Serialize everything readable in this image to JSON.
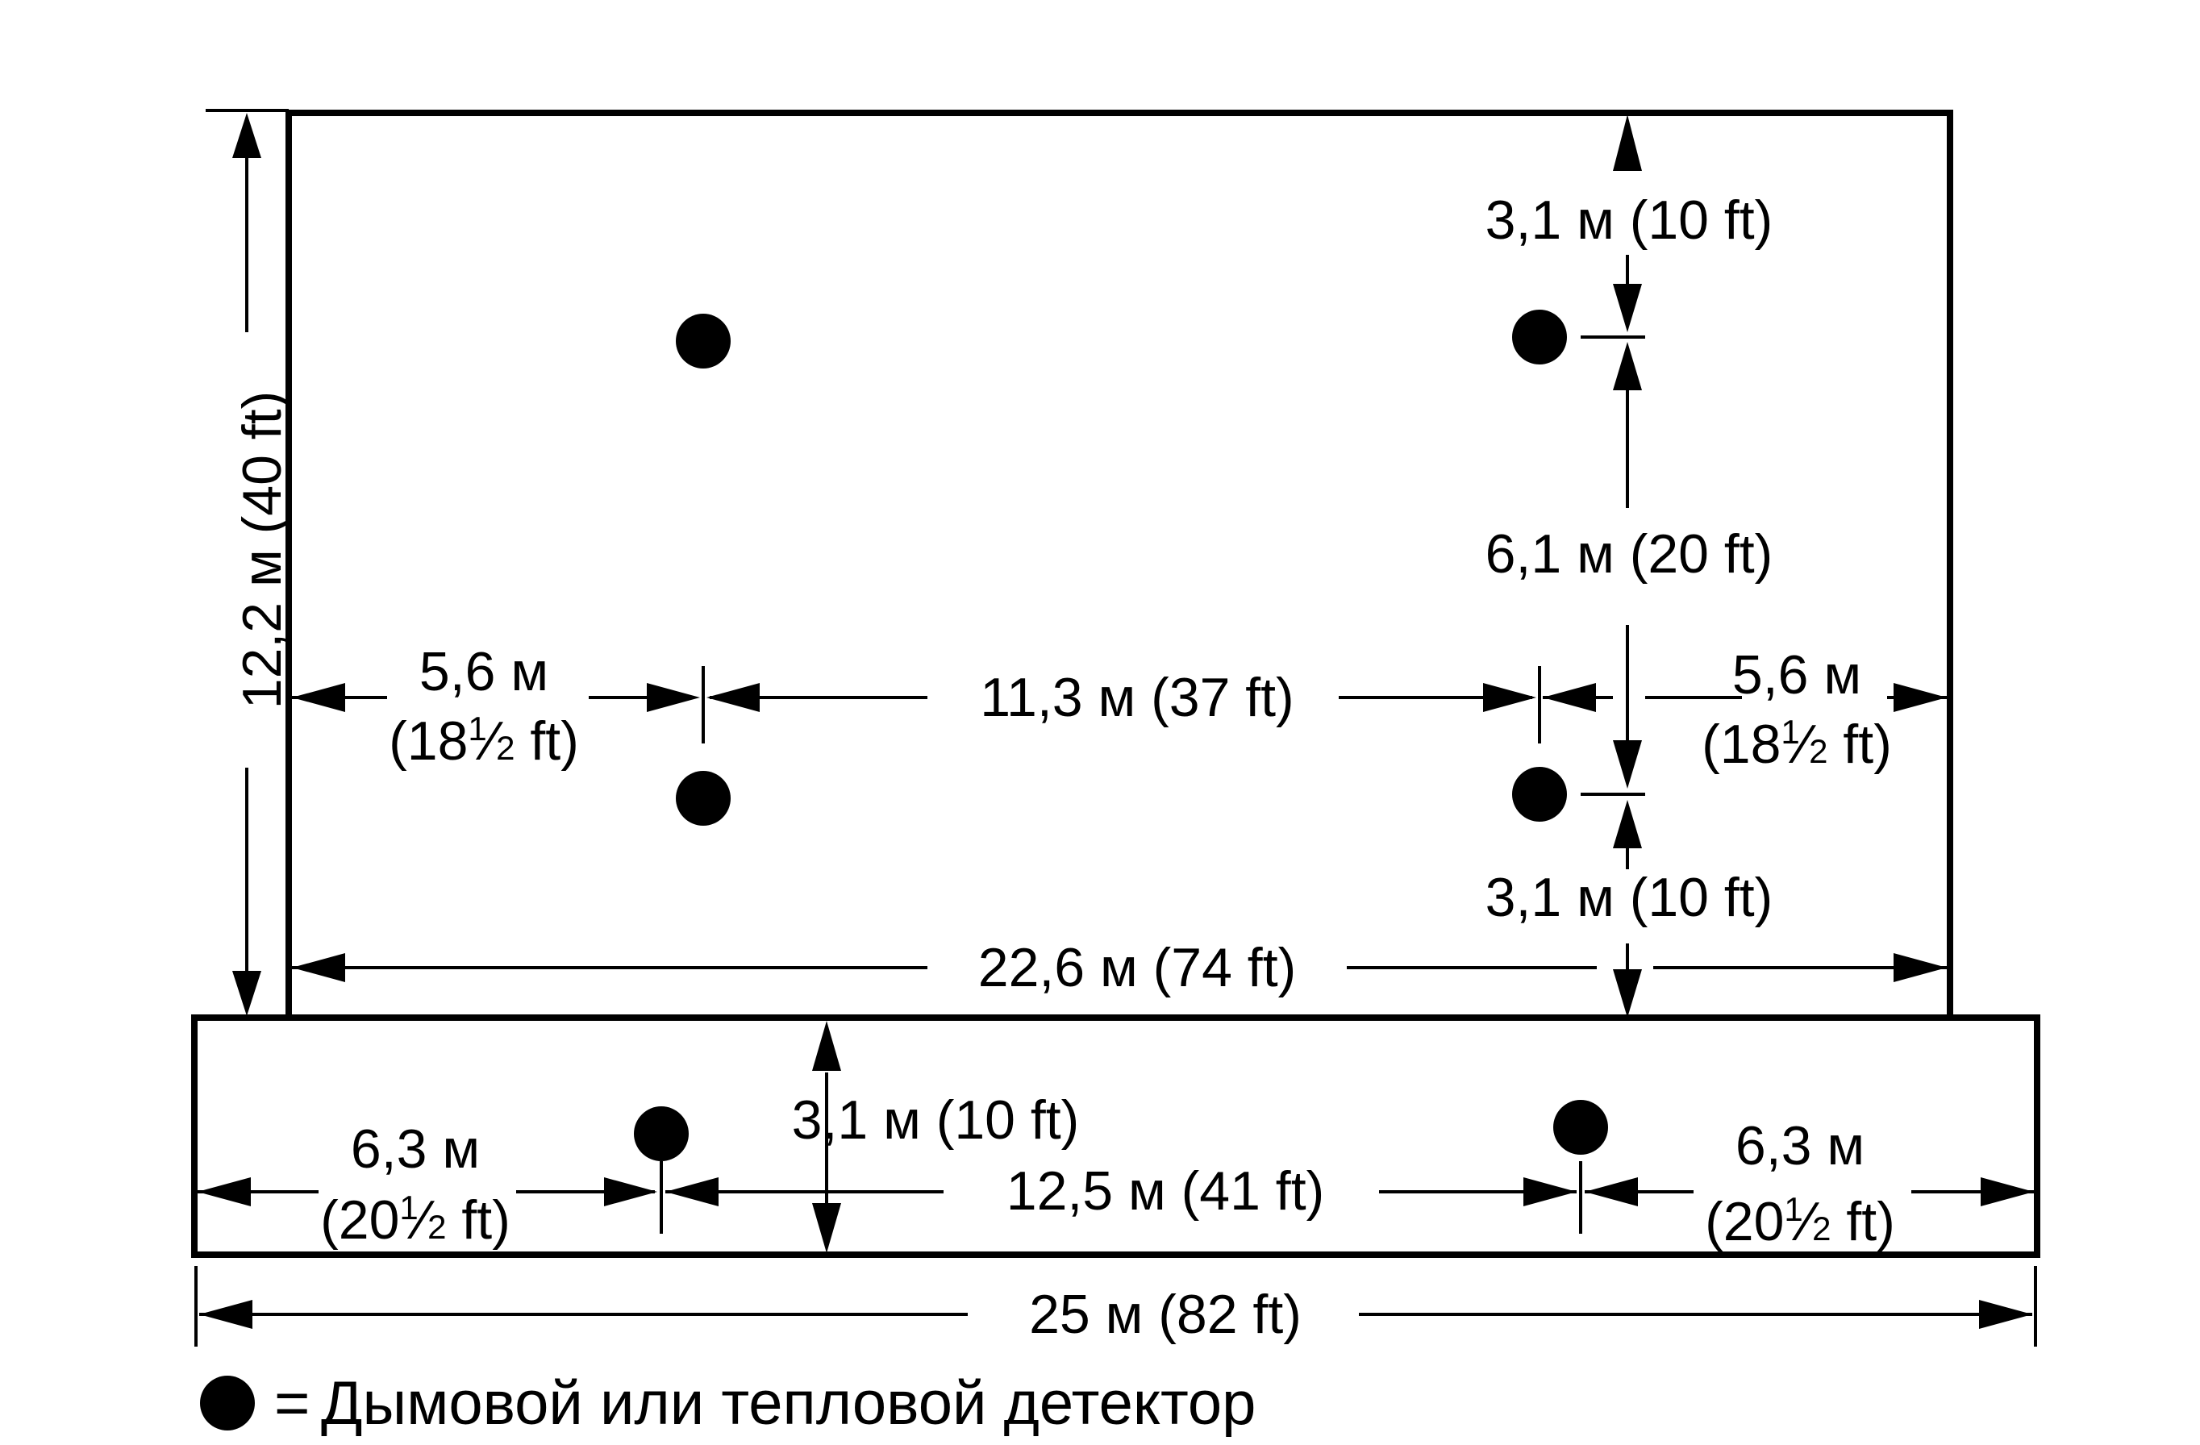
{
  "labels": {
    "room_depth": "12,2 м (40 ft)",
    "top_offset": "3,1 м (10 ft)",
    "detector_spacing_v": "6,1 м (20 ft)",
    "left_offset_m": "5,6 м",
    "left_offset_ft": {
      "whole": "(18",
      "num": "1",
      "den": "2",
      "rest": "ft)"
    },
    "detector_spacing_h": "11,3 м (37 ft)",
    "right_offset_m": "5,6 м",
    "right_offset_ft": {
      "whole": "(18",
      "num": "1",
      "den": "2",
      "rest": "ft)"
    },
    "bottom_offset": "3,1 м (10 ft)",
    "upper_width": "22,6 м (74 ft)",
    "corridor_offset": "3,1 м (10 ft)",
    "corridor_left_m": "6,3 м",
    "corridor_left_ft": {
      "whole": "(20",
      "num": "1",
      "den": "2",
      "rest": "ft)"
    },
    "corridor_spacing": "12,5 м (41 ft)",
    "corridor_right_m": "6,3 м",
    "corridor_right_ft": {
      "whole": "(20",
      "num": "1",
      "den": "2",
      "rest": "ft)"
    },
    "total_width": "25 м (82 ft)"
  },
  "legend": {
    "symbol": "=",
    "text": "Дымовой или тепловой детектор"
  },
  "colors": {
    "line": "#000000",
    "background": "#ffffff"
  }
}
